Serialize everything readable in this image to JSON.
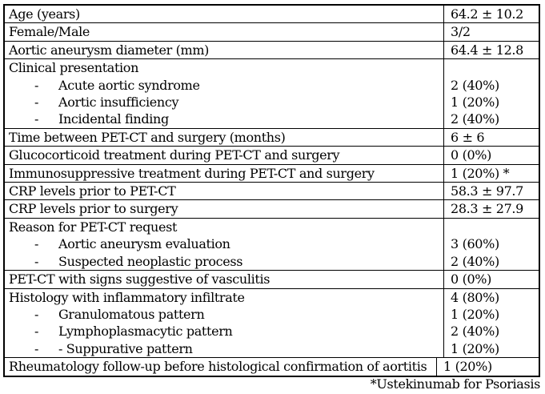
{
  "table": {
    "bullet": "-",
    "rows": [
      {
        "label": "Age (years)",
        "value": "64.2 ± 10.2"
      },
      {
        "label": "Female/Male",
        "value": "3/2"
      },
      {
        "label": "Aortic aneurysm diameter (mm)",
        "value": "64.4 ± 12.8"
      },
      {
        "label": "Clinical presentation",
        "value": "",
        "sub_items": [
          {
            "label": "Acute aortic syndrome",
            "value": "2 (40%)"
          },
          {
            "label": "Aortic insufficiency",
            "value": "1 (20%)"
          },
          {
            "label": "Incidental finding",
            "value": "2 (40%)"
          }
        ]
      },
      {
        "label": "Time between PET-CT and surgery (months)",
        "value": "6 ± 6"
      },
      {
        "label": "Glucocorticoid treatment during PET-CT and surgery",
        "value": "0 (0%)"
      },
      {
        "label": "Immunosuppressive treatment during PET-CT and surgery",
        "value": "1 (20%) *"
      },
      {
        "label": "CRP levels prior to PET-CT",
        "value": "58.3 ± 97.7"
      },
      {
        "label": "CRP levels prior to surgery",
        "value": "28.3 ± 27.9"
      },
      {
        "label": "Reason for PET-CT request",
        "value": "",
        "sub_items": [
          {
            "label": "Aortic aneurysm evaluation",
            "value": "3 (60%)"
          },
          {
            "label": "Suspected neoplastic process",
            "value": "2 (40%)"
          }
        ]
      },
      {
        "label": "PET-CT with signs suggestive of vasculitis",
        "value": "0 (0%)"
      },
      {
        "label": "Histology with inflammatory infiltrate",
        "value": "4 (80%)",
        "sub_items": [
          {
            "label": "Granulomatous pattern",
            "value": "1 (20%)"
          },
          {
            "label": "Lymphoplasmacytic pattern",
            "value": "2 (40%)"
          },
          {
            "label": "- Suppurative pattern",
            "value": "1 (20%)"
          }
        ]
      },
      {
        "label": "Rheumatology follow-up before histological confirmation of aortitis",
        "value": "1 (20%)",
        "narrow": true
      }
    ]
  },
  "footnote": "*Ustekinumab for Psoriasis"
}
